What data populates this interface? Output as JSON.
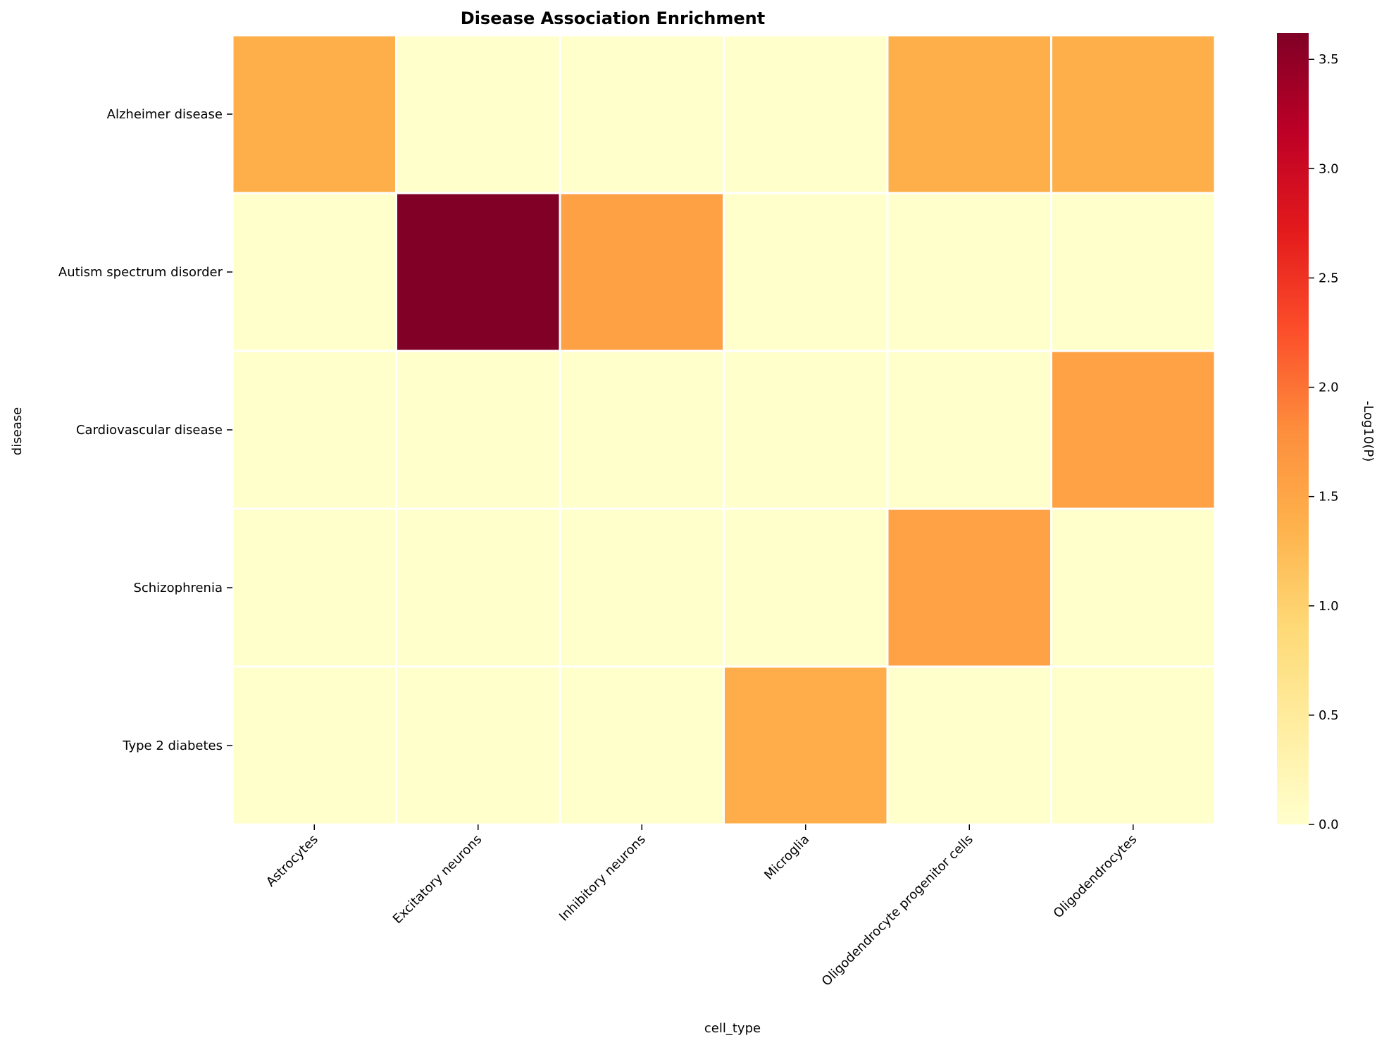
{
  "chart_data": {
    "type": "heatmap",
    "title": "Disease Association Enrichment",
    "xlabel": "cell_type",
    "ylabel": "disease",
    "colorbar_label": "-Log10(P)",
    "x_categories": [
      "Astrocytes",
      "Excitatory neurons",
      "Inhibitory neurons",
      "Microglia",
      "Oligodendrocyte progenitor cells",
      "Oligodendrocytes"
    ],
    "y_categories": [
      "Alzheimer disease",
      "Autism spectrum disorder",
      "Cardiovascular disease",
      "Schizophrenia",
      "Type 2 diabetes"
    ],
    "values": [
      [
        1.4,
        0.0,
        0.0,
        0.0,
        1.4,
        1.4
      ],
      [
        0.0,
        3.62,
        1.58,
        0.0,
        0.0,
        0.0
      ],
      [
        0.0,
        0.0,
        0.0,
        0.0,
        0.0,
        1.55
      ],
      [
        0.0,
        0.0,
        0.0,
        0.0,
        1.55,
        0.0
      ],
      [
        0.0,
        0.0,
        0.0,
        1.42,
        0.0,
        0.0
      ]
    ],
    "colorbar_range": [
      0,
      3.62
    ],
    "colorbar_ticks": [
      "0.0",
      "0.5",
      "1.0",
      "1.5",
      "2.0",
      "2.5",
      "3.0",
      "3.5"
    ],
    "colormap": "YlOrRd",
    "colormap_stops": [
      "#ffffcc",
      "#ffeda0",
      "#fed976",
      "#feb24c",
      "#fd8d3c",
      "#fc4e2a",
      "#e31a1c",
      "#bd0026",
      "#800026"
    ],
    "cell_border_color": "#ffffff"
  }
}
